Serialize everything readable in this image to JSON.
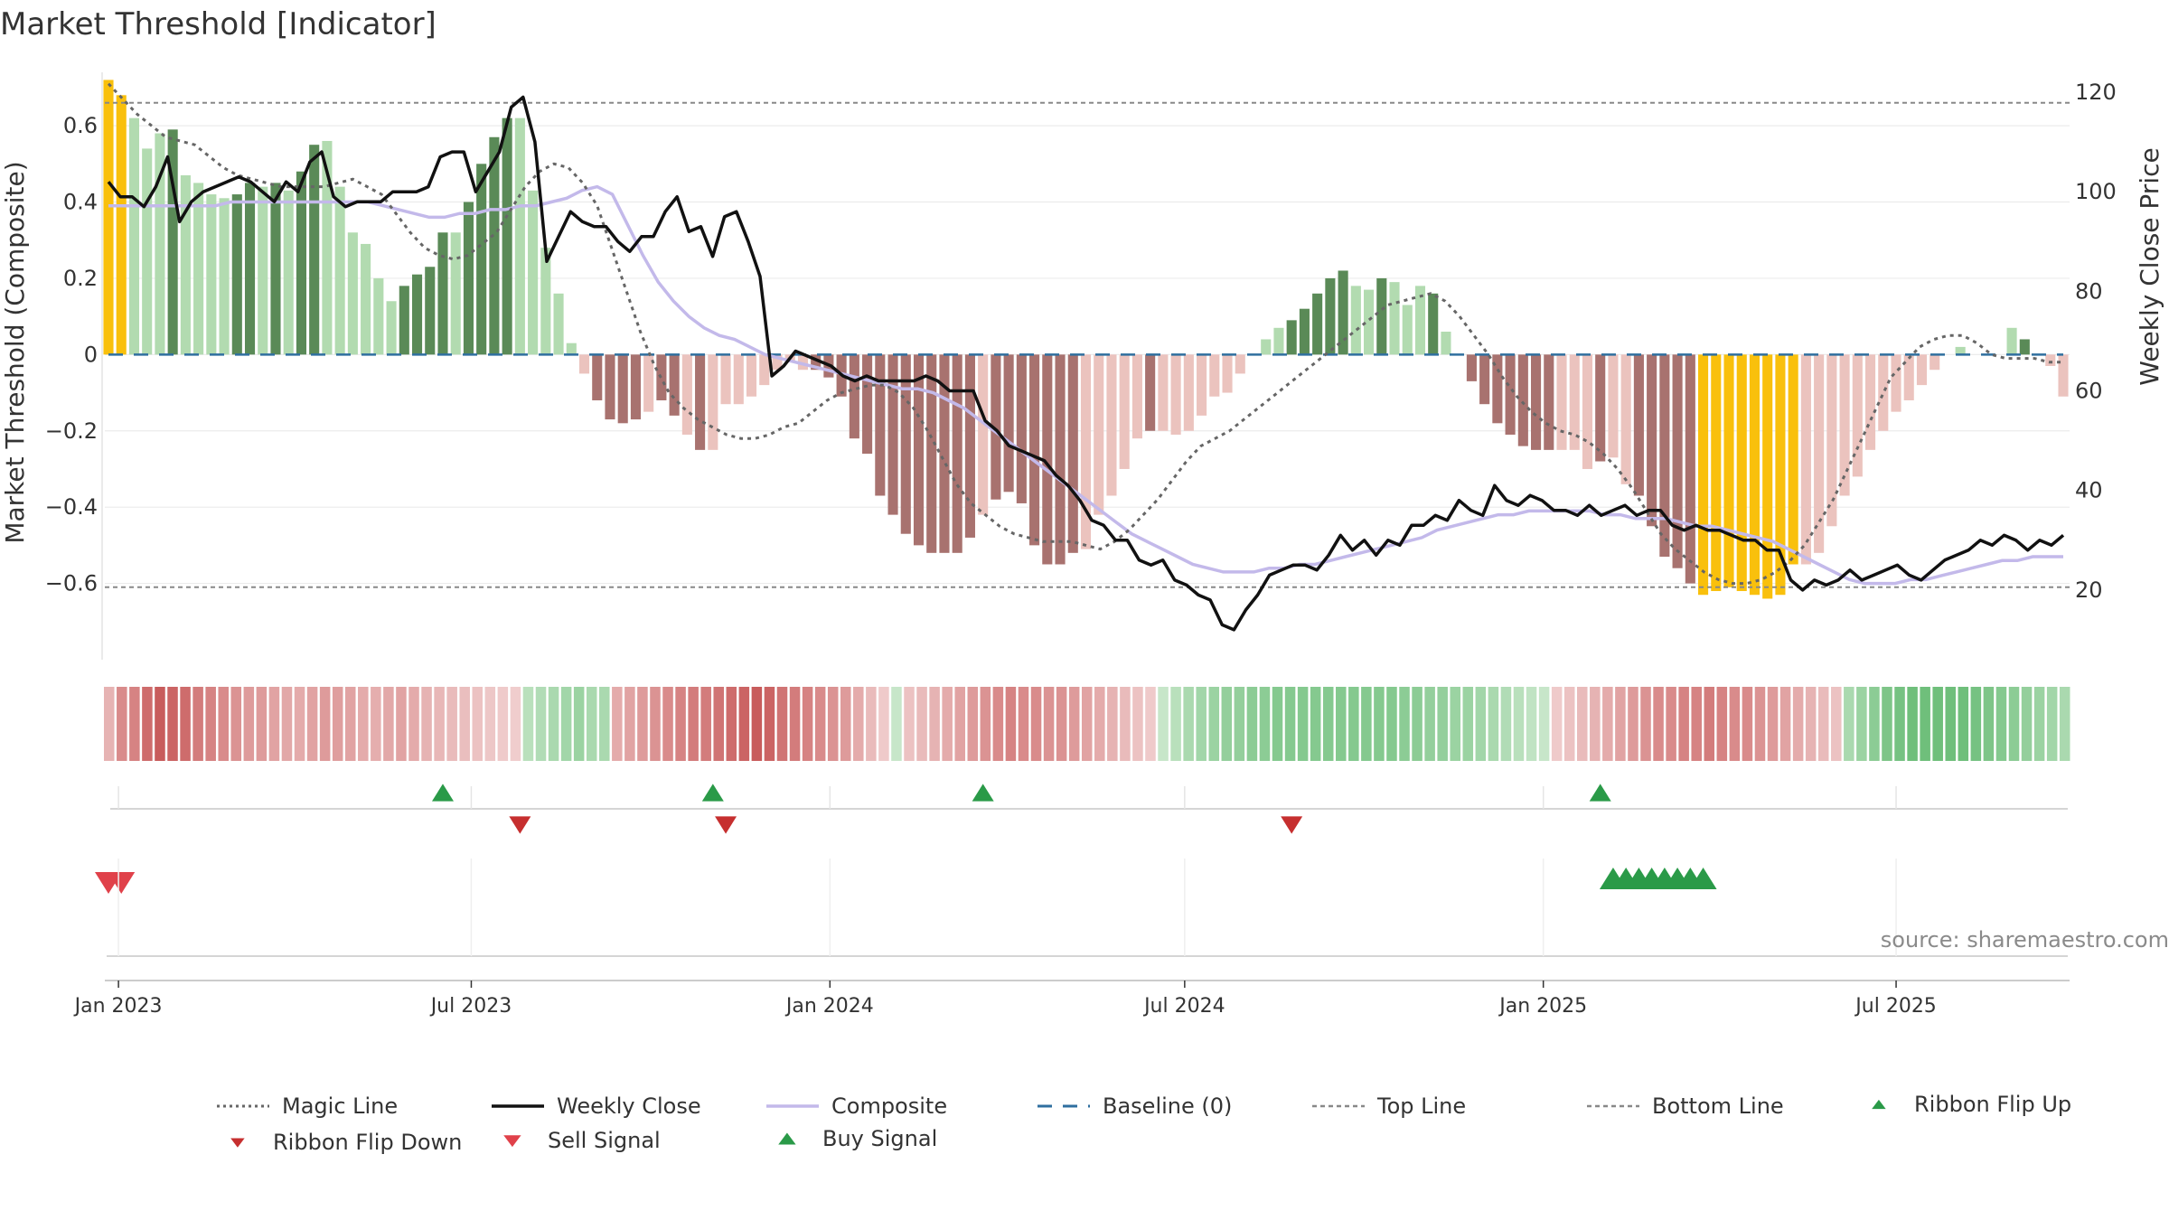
{
  "page": {
    "title": "Market Threshold [Indicator]",
    "source": "source: sharemaestro.com"
  },
  "chart_data": {
    "type": "bar+line",
    "title": "Market Threshold [Indicator]",
    "y_left_label": "Market Threshold (Composite)",
    "y_right_label": "Weekly Close Price",
    "y_left_range": [
      -0.8,
      0.74
    ],
    "y_right_range": [
      6,
      124
    ],
    "y_left_ticks": [
      0.6,
      0.4,
      0.2,
      0,
      -0.2,
      -0.4,
      -0.6
    ],
    "y_left_tick_labels": [
      "0.6",
      "0.4",
      "0.2",
      "0",
      "−0.2",
      "−0.4",
      "−0.6"
    ],
    "y_right_ticks": [
      120,
      100,
      80,
      60,
      40,
      20
    ],
    "y_right_tick_labels": [
      "120",
      "100",
      "80",
      "60",
      "40",
      "20"
    ],
    "x_ticks": [
      "2023-01-01",
      "2023-07-01",
      "2024-01-01",
      "2024-07-01",
      "2025-01-01",
      "2025-07-01"
    ],
    "x_tick_labels": [
      "Jan 2023",
      "Jul 2023",
      "Jan 2024",
      "Jul 2024",
      "Jan 2025",
      "Jul 2025"
    ],
    "x_range": [
      "2022-12-25",
      "2025-09-28"
    ],
    "top_line": 0.66,
    "bottom_line": -0.61,
    "colors": {
      "extreme": "#f9c00c",
      "pos_strong": "#5a8a57",
      "pos_weak": "#b2dbb0",
      "neg_strong": "#a8726f",
      "neg_weak": "#ebc3be",
      "close": "#111111",
      "composite": "#c3b9ea",
      "magic": "#666666",
      "baseline": "#2f6f9f",
      "buy": "#2a9a48",
      "sell": "#d0343b",
      "ribbon_up": "#2a9a48",
      "ribbon_down": "#c62f2f"
    },
    "composite_bars": [
      0.72,
      0.68,
      0.62,
      0.54,
      0.58,
      0.59,
      0.47,
      0.45,
      0.42,
      0.41,
      0.42,
      0.45,
      0.44,
      0.45,
      0.43,
      0.48,
      0.55,
      0.56,
      0.44,
      0.32,
      0.29,
      0.2,
      0.14,
      0.18,
      0.21,
      0.23,
      0.32,
      0.32,
      0.4,
      0.5,
      0.57,
      0.62,
      0.62,
      0.43,
      0.28,
      0.16,
      0.03,
      -0.05,
      -0.12,
      -0.17,
      -0.18,
      -0.17,
      -0.15,
      -0.12,
      -0.16,
      -0.21,
      -0.25,
      -0.25,
      -0.13,
      -0.13,
      -0.11,
      -0.08,
      -0.04,
      -0.02,
      -0.04,
      -0.04,
      -0.06,
      -0.11,
      -0.22,
      -0.26,
      -0.37,
      -0.42,
      -0.47,
      -0.5,
      -0.52,
      -0.52,
      -0.52,
      -0.48,
      -0.42,
      -0.38,
      -0.36,
      -0.39,
      -0.5,
      -0.55,
      -0.55,
      -0.52,
      -0.51,
      -0.42,
      -0.37,
      -0.3,
      -0.22,
      -0.2,
      -0.2,
      -0.21,
      -0.2,
      -0.16,
      -0.11,
      -0.1,
      -0.05,
      0.0,
      0.04,
      0.07,
      0.09,
      0.12,
      0.16,
      0.2,
      0.22,
      0.18,
      0.17,
      0.2,
      0.19,
      0.13,
      0.18,
      0.16,
      0.06,
      0.0,
      -0.07,
      -0.13,
      -0.18,
      -0.21,
      -0.24,
      -0.25,
      -0.25,
      -0.25,
      -0.25,
      -0.3,
      -0.28,
      -0.27,
      -0.34,
      -0.37,
      -0.45,
      -0.53,
      -0.56,
      -0.6,
      -0.63,
      -0.62,
      -0.61,
      -0.62,
      -0.63,
      -0.64,
      -0.63,
      -0.55,
      -0.55,
      -0.52,
      -0.45,
      -0.37,
      -0.32,
      -0.25,
      -0.2,
      -0.15,
      -0.12,
      -0.08,
      -0.04,
      0.0,
      0.02,
      0.0,
      0.0,
      0.0,
      0.07,
      0.04,
      0.0,
      -0.03,
      -0.11
    ],
    "bar_categories": [
      "E",
      "E",
      "W",
      "W",
      "W",
      "S",
      "W",
      "W",
      "W",
      "W",
      "S",
      "S",
      "W",
      "S",
      "W",
      "S",
      "S",
      "W",
      "W",
      "W",
      "W",
      "W",
      "W",
      "S",
      "S",
      "S",
      "S",
      "W",
      "S",
      "S",
      "S",
      "S",
      "W",
      "W",
      "W",
      "W",
      "W",
      "W",
      "S",
      "S",
      "S",
      "S",
      "W",
      "S",
      "S",
      "W",
      "S",
      "W",
      "W",
      "W",
      "W",
      "W",
      "W",
      "W",
      "W",
      "S",
      "S",
      "S",
      "S",
      "S",
      "S",
      "S",
      "S",
      "S",
      "S",
      "S",
      "S",
      "S",
      "W",
      "S",
      "S",
      "S",
      "S",
      "S",
      "S",
      "S",
      "W",
      "W",
      "W",
      "W",
      "W",
      "S",
      "W",
      "W",
      "W",
      "W",
      "W",
      "W",
      "W",
      "W",
      "W",
      "W",
      "S",
      "S",
      "S",
      "S",
      "S",
      "W",
      "W",
      "S",
      "W",
      "W",
      "W",
      "S",
      "W",
      "W",
      "S",
      "S",
      "S",
      "S",
      "S",
      "S",
      "S",
      "W",
      "W",
      "W",
      "S",
      "W",
      "W",
      "S",
      "S",
      "S",
      "S",
      "S",
      "E",
      "E",
      "E",
      "E",
      "E",
      "E",
      "E",
      "E",
      "W",
      "W",
      "W",
      "W",
      "W",
      "W",
      "W",
      "W",
      "W",
      "W",
      "W",
      "W",
      "W",
      "S",
      "W",
      "W",
      "W",
      "S",
      "W",
      "W",
      "W",
      "S"
    ],
    "weekly_close": [
      102,
      99,
      99,
      97,
      101,
      107,
      94,
      98,
      100,
      101,
      102,
      103,
      102,
      100,
      98,
      102,
      100,
      106,
      108,
      99,
      97,
      98,
      98,
      98,
      100,
      100,
      100,
      101,
      107,
      108,
      108,
      100,
      104,
      108,
      117,
      119,
      110,
      86,
      91,
      96,
      94,
      93,
      93,
      90,
      88,
      91,
      91,
      96,
      99,
      92,
      93,
      87,
      95,
      96,
      90,
      83,
      63,
      65,
      68,
      67,
      66,
      65,
      63,
      62,
      63,
      62,
      62,
      62,
      62,
      63,
      62,
      60,
      60,
      60,
      54,
      52,
      49,
      48,
      47,
      46,
      43,
      41,
      38,
      34,
      33,
      30,
      30,
      26,
      25,
      26,
      22,
      21,
      19,
      18,
      13,
      12,
      16,
      19,
      23,
      24,
      25,
      25,
      24,
      27,
      31,
      28,
      30,
      27,
      30,
      29,
      33,
      33,
      35,
      34,
      38,
      36,
      35,
      41,
      38,
      37,
      39,
      38,
      36,
      36,
      35,
      37,
      35,
      36,
      37,
      35,
      36,
      36,
      33,
      32,
      33,
      32,
      32,
      31,
      30,
      30,
      28,
      28,
      22,
      20,
      22,
      21,
      22,
      24,
      22,
      23,
      24,
      25,
      23,
      22,
      24,
      26,
      27,
      28,
      30,
      29,
      31,
      30,
      28,
      30,
      29,
      31
    ],
    "magic_line": [
      0.71,
      0.67,
      0.63,
      0.6,
      0.57,
      0.56,
      0.55,
      0.52,
      0.49,
      0.47,
      0.46,
      0.45,
      0.44,
      0.44,
      0.44,
      0.44,
      0.45,
      0.46,
      0.44,
      0.42,
      0.37,
      0.32,
      0.28,
      0.26,
      0.25,
      0.26,
      0.29,
      0.32,
      0.38,
      0.44,
      0.48,
      0.5,
      0.49,
      0.45,
      0.39,
      0.28,
      0.17,
      0.06,
      -0.03,
      -0.1,
      -0.14,
      -0.17,
      -0.19,
      -0.21,
      -0.22,
      -0.22,
      -0.21,
      -0.19,
      -0.18,
      -0.15,
      -0.12,
      -0.1,
      -0.09,
      -0.08,
      -0.08,
      -0.1,
      -0.14,
      -0.2,
      -0.27,
      -0.34,
      -0.39,
      -0.42,
      -0.45,
      -0.47,
      -0.48,
      -0.49,
      -0.49,
      -0.49,
      -0.5,
      -0.51,
      -0.49,
      -0.46,
      -0.42,
      -0.38,
      -0.33,
      -0.28,
      -0.24,
      -0.22,
      -0.2,
      -0.17,
      -0.14,
      -0.11,
      -0.08,
      -0.05,
      -0.02,
      0.01,
      0.04,
      0.07,
      0.1,
      0.13,
      0.14,
      0.15,
      0.16,
      0.14,
      0.1,
      0.05,
      0.0,
      -0.06,
      -0.11,
      -0.15,
      -0.18,
      -0.2,
      -0.21,
      -0.23,
      -0.26,
      -0.3,
      -0.35,
      -0.41,
      -0.47,
      -0.51,
      -0.54,
      -0.57,
      -0.59,
      -0.6,
      -0.6,
      -0.59,
      -0.57,
      -0.54,
      -0.5,
      -0.44,
      -0.38,
      -0.3,
      -0.22,
      -0.14,
      -0.06,
      -0.02,
      0.02,
      0.04,
      0.05,
      0.05,
      0.03,
      0.0,
      -0.01,
      -0.01,
      -0.01,
      -0.02,
      -0.02
    ],
    "composite_line": [
      0.39,
      0.39,
      0.39,
      0.39,
      0.39,
      0.39,
      0.39,
      0.39,
      0.4,
      0.4,
      0.4,
      0.4,
      0.4,
      0.4,
      0.4,
      0.4,
      0.4,
      0.4,
      0.39,
      0.38,
      0.37,
      0.36,
      0.36,
      0.37,
      0.37,
      0.38,
      0.38,
      0.39,
      0.39,
      0.4,
      0.41,
      0.43,
      0.44,
      0.42,
      0.34,
      0.26,
      0.19,
      0.14,
      0.1,
      0.07,
      0.05,
      0.04,
      0.02,
      0.0,
      -0.01,
      -0.02,
      -0.03,
      -0.04,
      -0.05,
      -0.06,
      -0.07,
      -0.08,
      -0.09,
      -0.09,
      -0.1,
      -0.12,
      -0.14,
      -0.17,
      -0.2,
      -0.23,
      -0.26,
      -0.29,
      -0.32,
      -0.35,
      -0.38,
      -0.41,
      -0.44,
      -0.47,
      -0.49,
      -0.51,
      -0.53,
      -0.55,
      -0.56,
      -0.57,
      -0.57,
      -0.57,
      -0.56,
      -0.56,
      -0.55,
      -0.55,
      -0.54,
      -0.53,
      -0.52,
      -0.51,
      -0.5,
      -0.49,
      -0.48,
      -0.46,
      -0.45,
      -0.44,
      -0.43,
      -0.42,
      -0.42,
      -0.41,
      -0.41,
      -0.41,
      -0.41,
      -0.41,
      -0.42,
      -0.42,
      -0.43,
      -0.43,
      -0.43,
      -0.44,
      -0.45,
      -0.45,
      -0.46,
      -0.47,
      -0.48,
      -0.49,
      -0.51,
      -0.53,
      -0.55,
      -0.57,
      -0.59,
      -0.6,
      -0.6,
      -0.6,
      -0.59,
      -0.59,
      -0.58,
      -0.57,
      -0.56,
      -0.55,
      -0.54,
      -0.54,
      -0.53,
      -0.53,
      -0.53
    ],
    "ribbon": [
      -0.25,
      -0.5,
      -0.55,
      -0.7,
      -0.8,
      -0.75,
      -0.7,
      -0.6,
      -0.55,
      -0.5,
      -0.45,
      -0.4,
      -0.4,
      -0.35,
      -0.32,
      -0.3,
      -0.35,
      -0.4,
      -0.38,
      -0.35,
      -0.3,
      -0.28,
      -0.32,
      -0.35,
      -0.3,
      -0.25,
      -0.22,
      -0.2,
      -0.18,
      -0.15,
      -0.12,
      -0.1,
      -0.08,
      0.2,
      0.25,
      0.3,
      0.35,
      0.4,
      0.3,
      0.3,
      -0.3,
      -0.35,
      -0.4,
      -0.45,
      -0.5,
      -0.55,
      -0.6,
      -0.6,
      -0.65,
      -0.7,
      -0.75,
      -0.8,
      -0.75,
      -0.65,
      -0.6,
      -0.55,
      -0.5,
      -0.45,
      -0.4,
      -0.3,
      -0.2,
      -0.1,
      0.1,
      -0.15,
      -0.2,
      -0.25,
      -0.3,
      -0.35,
      -0.4,
      -0.45,
      -0.5,
      -0.55,
      -0.5,
      -0.5,
      -0.45,
      -0.45,
      -0.4,
      -0.35,
      -0.3,
      -0.25,
      -0.2,
      -0.15,
      -0.1,
      0.1,
      0.2,
      0.3,
      0.35,
      0.4,
      0.45,
      0.45,
      0.5,
      0.5,
      0.55,
      0.55,
      0.55,
      0.55,
      0.55,
      0.55,
      0.55,
      0.55,
      0.55,
      0.55,
      0.5,
      0.5,
      0.45,
      0.45,
      0.4,
      0.4,
      0.35,
      0.3,
      0.25,
      0.2,
      0.15,
      0.1,
      -0.1,
      -0.15,
      -0.2,
      -0.25,
      -0.3,
      -0.35,
      -0.4,
      -0.45,
      -0.5,
      -0.5,
      -0.55,
      -0.55,
      -0.6,
      -0.55,
      -0.5,
      -0.5,
      -0.45,
      -0.4,
      -0.35,
      -0.3,
      -0.25,
      -0.2,
      -0.15,
      0.3,
      0.4,
      0.5,
      0.6,
      0.65,
      0.7,
      0.7,
      0.7,
      0.7,
      0.7,
      0.65,
      0.6,
      0.55,
      0.5,
      0.45,
      0.4,
      0.35,
      0.3
    ],
    "ribbon_flip_up_weeks": [
      26,
      47,
      68,
      116
    ],
    "ribbon_flip_down_weeks": [
      32,
      48,
      92
    ],
    "sell_signal_weeks": [
      0,
      1
    ],
    "buy_signal_weeks": [
      117,
      118,
      119,
      120,
      121,
      122,
      123,
      124
    ]
  },
  "legend": [
    {
      "key": "magic",
      "label": "Magic Line",
      "icon": "dotted-line-icon"
    },
    {
      "key": "close",
      "label": "Weekly Close",
      "icon": "solid-line-icon"
    },
    {
      "key": "composite",
      "label": "Composite",
      "icon": "solid-line-icon"
    },
    {
      "key": "baseline",
      "label": "Baseline (0)",
      "icon": "dashed-line-icon"
    },
    {
      "key": "top",
      "label": "Top Line",
      "icon": "dotted-line-icon"
    },
    {
      "key": "bottom",
      "label": "Bottom Line",
      "icon": "dotted-line-icon"
    },
    {
      "key": "ribbon_up",
      "label": "Ribbon Flip Up",
      "icon": "triangle-up-icon"
    },
    {
      "key": "ribbon_down",
      "label": "Ribbon Flip Down",
      "icon": "triangle-down-icon"
    },
    {
      "key": "sell",
      "label": "Sell Signal",
      "icon": "triangle-down-icon"
    },
    {
      "key": "buy",
      "label": "Buy Signal",
      "icon": "triangle-up-icon"
    }
  ]
}
